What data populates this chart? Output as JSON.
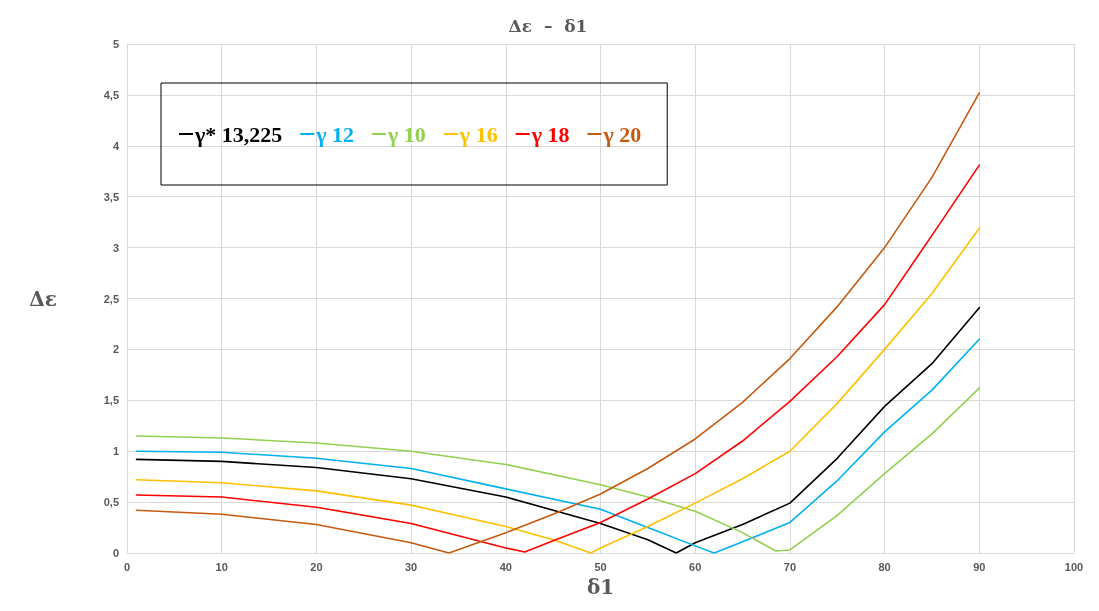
{
  "chart_data": {
    "type": "line",
    "title": "Δε  –  δ1",
    "xlabel": "δ1",
    "ylabel": "Δε",
    "xlim": [
      0,
      100
    ],
    "xticks": [
      0,
      10,
      20,
      30,
      40,
      50,
      60,
      70,
      80,
      90,
      100
    ],
    "ylim": [
      0,
      5
    ],
    "yticks": [
      0,
      {
        "value": 0.5,
        "label": "0,5"
      },
      1,
      {
        "value": 1.5,
        "label": "1,5"
      },
      2,
      {
        "value": 2.5,
        "label": "2,5"
      },
      3,
      {
        "value": 3.5,
        "label": "3,5"
      },
      4,
      {
        "value": 4.5,
        "label": "4,5"
      },
      5
    ],
    "grid": true,
    "legend": "top left",
    "marker": "none",
    "line_style": "solid",
    "series": [
      {
        "name": "γ* 13,225",
        "color": "#000000",
        "x": [
          1,
          10,
          20,
          30,
          40,
          50,
          55,
          58,
          60,
          65,
          70,
          75,
          80,
          85,
          90
        ],
        "values": [
          0.92,
          0.9,
          0.84,
          0.73,
          0.55,
          0.29,
          0.13,
          0,
          0.1,
          0.28,
          0.49,
          0.93,
          1.44,
          1.86,
          2.41
        ]
      },
      {
        "name": "γ 12",
        "color": "#00b0f0",
        "x": [
          1,
          10,
          20,
          30,
          40,
          50,
          55,
          60,
          62,
          65,
          70,
          75,
          80,
          85,
          90
        ],
        "values": [
          1.0,
          0.99,
          0.93,
          0.83,
          0.63,
          0.43,
          0.25,
          0.07,
          0,
          0.11,
          0.3,
          0.71,
          1.19,
          1.6,
          2.1
        ]
      },
      {
        "name": "γ 10",
        "color": "#92d050",
        "x": [
          1,
          10,
          20,
          30,
          40,
          50,
          55,
          60,
          65,
          68.5,
          70,
          75,
          80,
          85,
          90
        ],
        "values": [
          1.15,
          1.13,
          1.08,
          1.0,
          0.87,
          0.67,
          0.55,
          0.41,
          0.2,
          0.02,
          0.03,
          0.37,
          0.78,
          1.17,
          1.62
        ]
      },
      {
        "name": "γ 16",
        "color": "#ffc000",
        "x": [
          1,
          10,
          20,
          30,
          40,
          45,
          49,
          50,
          55,
          60,
          65,
          70,
          75,
          80,
          85,
          90
        ],
        "values": [
          0.72,
          0.69,
          0.61,
          0.47,
          0.26,
          0.13,
          0,
          0.05,
          0.26,
          0.49,
          0.73,
          1.0,
          1.47,
          2.0,
          2.55,
          3.19
        ]
      },
      {
        "name": "γ 18",
        "color": "#ff0000",
        "x": [
          1,
          10,
          20,
          30,
          40,
          42,
          45,
          50,
          55,
          60,
          65,
          70,
          75,
          80,
          85,
          90
        ],
        "values": [
          0.57,
          0.55,
          0.45,
          0.29,
          0.05,
          0.01,
          0.12,
          0.3,
          0.53,
          0.78,
          1.1,
          1.49,
          1.93,
          2.44,
          3.12,
          3.81
        ]
      },
      {
        "name": "γ 20",
        "color": "#c55a11",
        "x": [
          1,
          10,
          20,
          30,
          34,
          40,
          45,
          50,
          55,
          60,
          65,
          70,
          75,
          80,
          85,
          90
        ],
        "values": [
          0.42,
          0.38,
          0.28,
          0.1,
          0,
          0.2,
          0.38,
          0.58,
          0.83,
          1.12,
          1.48,
          1.91,
          2.42,
          3.0,
          3.69,
          4.52
        ]
      }
    ]
  }
}
